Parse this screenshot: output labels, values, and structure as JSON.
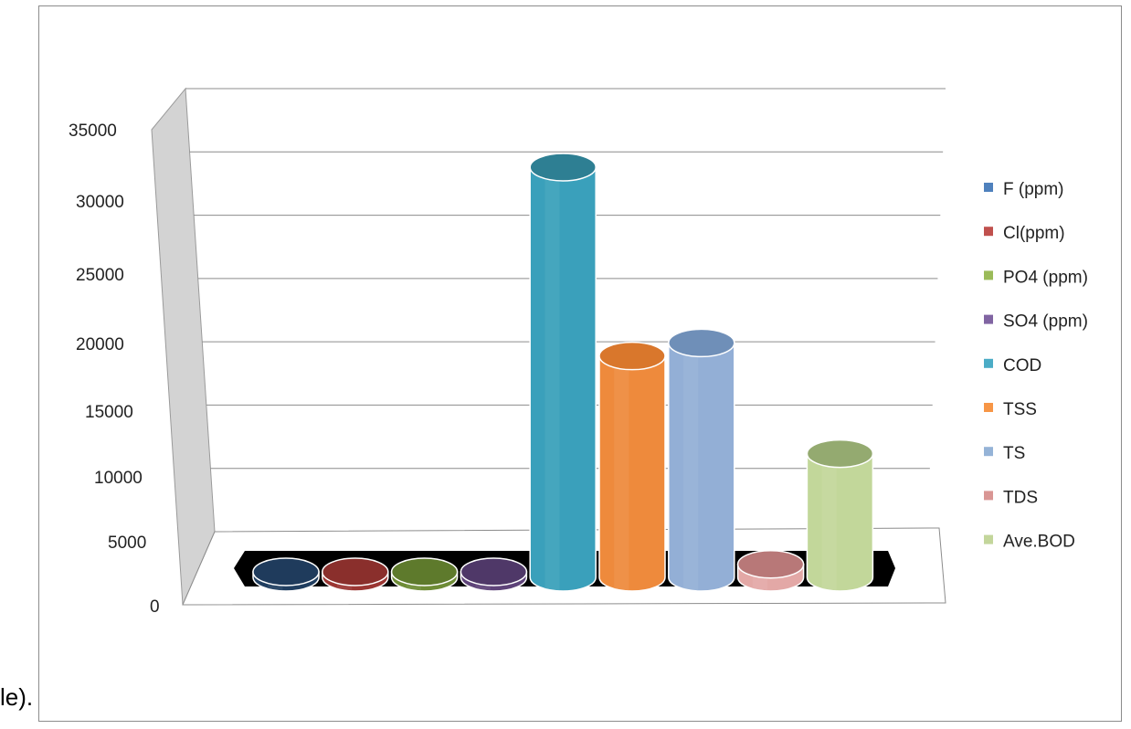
{
  "page_fragment": "le).",
  "chart_data": {
    "type": "bar",
    "style": "3d-cylinder",
    "title": "",
    "xlabel": "",
    "ylabel": "",
    "ylim": [
      0,
      35000
    ],
    "yticks": [
      "35000",
      "30000",
      "25000",
      "20000",
      "15000",
      "10000",
      "5000",
      "0"
    ],
    "grid": true,
    "legend_position": "right",
    "series": [
      {
        "name": "F (ppm)",
        "value": 2,
        "color": "#4f81bd",
        "top": "#1f3b5c",
        "body": "#203e60"
      },
      {
        "name": "Cl(ppm)",
        "value": 40,
        "color": "#c0504d",
        "top": "#8a2f2c",
        "body": "#9b3633"
      },
      {
        "name": "PO4 (ppm)",
        "value": 5,
        "color": "#9bbb59",
        "top": "#5e7a2c",
        "body": "#6e8c36"
      },
      {
        "name": "SO4 (ppm)",
        "value": 40,
        "color": "#8064a2",
        "top": "#4f3868",
        "body": "#5e4379"
      },
      {
        "name": "COD",
        "value": 31500,
        "color": "#4bacc6",
        "top": "#2e7f93",
        "body": "#3aa0bb"
      },
      {
        "name": "TSS",
        "value": 17000,
        "color": "#f79646",
        "top": "#d9772c",
        "body": "#ee8a3c"
      },
      {
        "name": "TS",
        "value": 18000,
        "color": "#95b3d7",
        "top": "#6f8fb8",
        "body": "#93afd6"
      },
      {
        "name": "TDS",
        "value": 1000,
        "color": "#d99694",
        "top": "#b87878",
        "body": "#e3a8a6"
      },
      {
        "name": "Ave.BOD",
        "value": 9500,
        "color": "#c3d69b",
        "top": "#94aa70",
        "body": "#c2d79a"
      }
    ]
  }
}
